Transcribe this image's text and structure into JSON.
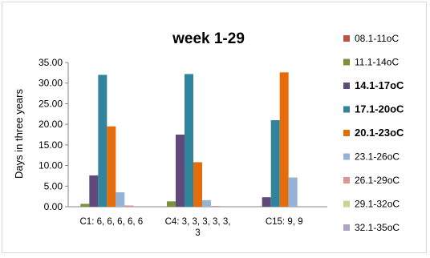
{
  "chart_data": {
    "type": "bar",
    "title": "week  1-29",
    "xlabel": "",
    "ylabel": "Days in three years",
    "ylim": [
      0,
      35
    ],
    "yticks": [
      "0.00",
      "5.00",
      "10.00",
      "15.00",
      "20.00",
      "25.00",
      "30.00",
      "35.00"
    ],
    "categories": [
      [
        "C1: 6, 6, 6, 6, 6"
      ],
      [
        "C4: 3, 3, 3, 3, 3,",
        "3"
      ],
      [
        "C15: 9, 9"
      ]
    ],
    "legend_position": "right",
    "grid": false,
    "series": [
      {
        "name": "08.1-11oC",
        "color": "#c0504d",
        "bold": false,
        "values": [
          0.0,
          0.0,
          0.0
        ]
      },
      {
        "name": "11.1-14oC",
        "color": "#77933c",
        "bold": false,
        "values": [
          0.7,
          1.3,
          0.0
        ]
      },
      {
        "name": "14.1-17oC",
        "color": "#604a7b",
        "bold": true,
        "values": [
          7.6,
          17.5,
          2.3
        ]
      },
      {
        "name": "17.1-20oC",
        "color": "#31849b",
        "bold": true,
        "values": [
          32.0,
          32.2,
          21.0
        ]
      },
      {
        "name": "20.1-23oC",
        "color": "#e46c0a",
        "bold": true,
        "values": [
          19.5,
          10.8,
          32.6
        ]
      },
      {
        "name": "23.1-26oC",
        "color": "#95b3d7",
        "bold": false,
        "values": [
          3.5,
          1.6,
          7.1
        ]
      },
      {
        "name": "26.1-29oC",
        "color": "#d99694",
        "bold": false,
        "values": [
          0.3,
          0.2,
          0.0
        ]
      },
      {
        "name": "29.1-32oC",
        "color": "#c3d69b",
        "bold": false,
        "values": [
          0.0,
          0.0,
          0.0
        ]
      },
      {
        "name": "32.1-35oC",
        "color": "#b3a2c7",
        "bold": false,
        "values": [
          0.0,
          0.0,
          0.0
        ]
      }
    ]
  }
}
